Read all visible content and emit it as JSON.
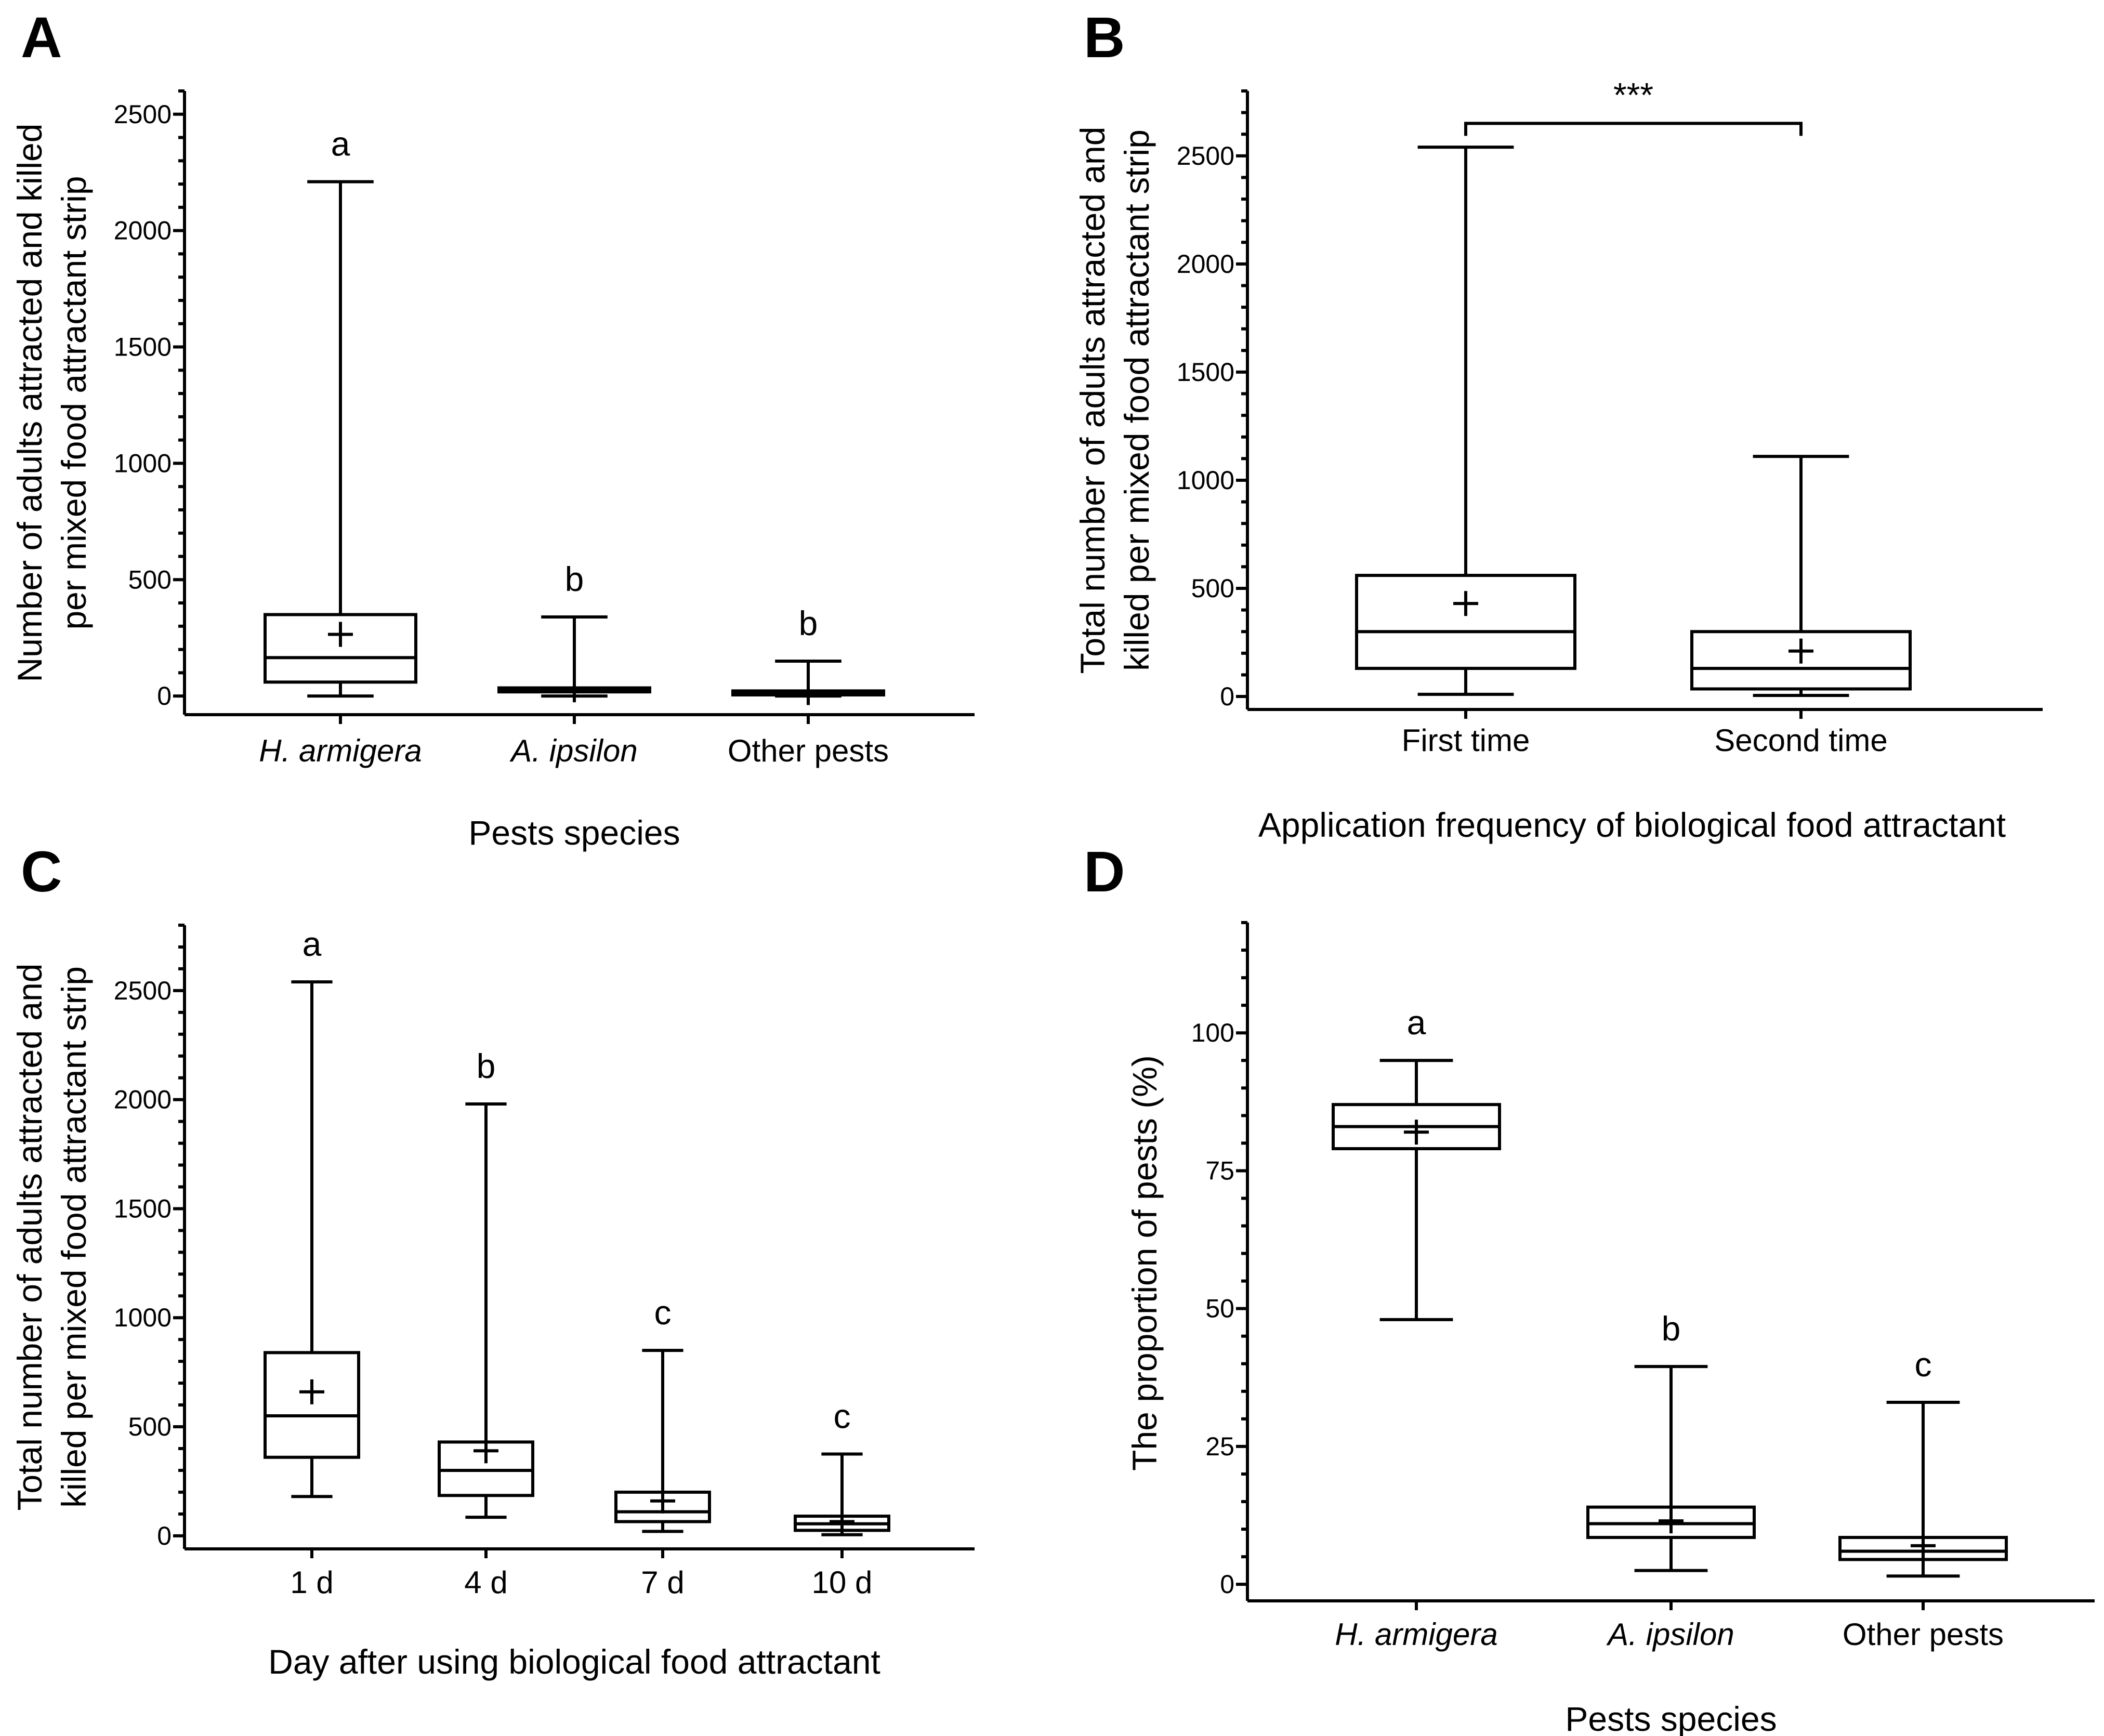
{
  "colors": {
    "ink": "#000000",
    "background": "#ffffff"
  },
  "chart_data": [
    {
      "panel": "A",
      "type": "box",
      "xlabel": "Pests species",
      "ylabel_lines": [
        "Number of adults attracted and killed",
        "per mixed food attractant strip"
      ],
      "ylim": [
        -80,
        2600
      ],
      "yticks": [
        0,
        500,
        1000,
        1500,
        2000,
        2500
      ],
      "yticks_labels": [
        "0",
        "500",
        "1000",
        "1500",
        "2000",
        "2500"
      ],
      "minor_step": 100,
      "categories": [
        "H. armigera",
        "A. ipsilon",
        "Other pests"
      ],
      "italic_categories": [
        true,
        true,
        false
      ],
      "boxes": [
        {
          "min": 0,
          "q1": 60,
          "median": 165,
          "q3": 350,
          "max": 2210,
          "mean": 265,
          "letter": "a"
        },
        {
          "min": 0,
          "q1": 18,
          "median": 25,
          "q3": 35,
          "max": 340,
          "mean": 27,
          "letter": "b"
        },
        {
          "min": 0,
          "q1": 5,
          "median": 12,
          "q3": 22,
          "max": 150,
          "mean": 15,
          "letter": "b"
        }
      ]
    },
    {
      "panel": "B",
      "type": "box",
      "xlabel": "Application frequency of biological food attractant",
      "ylabel_lines": [
        "Total number of adults attracted and",
        "killed per mixed food attractant strip"
      ],
      "ylim": [
        -60,
        2800
      ],
      "yticks": [
        0,
        500,
        1000,
        1500,
        2000,
        2500
      ],
      "yticks_labels": [
        "0",
        "500",
        "1000",
        "1500",
        "2000",
        "2500"
      ],
      "minor_step": 100,
      "categories": [
        "First time",
        "Second time"
      ],
      "italic_categories": [
        false,
        false
      ],
      "significance": {
        "between": [
          0,
          1
        ],
        "label": "***",
        "level": 2650
      },
      "boxes": [
        {
          "min": 10,
          "q1": 130,
          "median": 300,
          "q3": 560,
          "max": 2540,
          "mean": 430,
          "letter": ""
        },
        {
          "min": 5,
          "q1": 35,
          "median": 130,
          "q3": 300,
          "max": 1110,
          "mean": 210,
          "letter": ""
        }
      ]
    },
    {
      "panel": "C",
      "type": "box",
      "xlabel": "Day after using biological food attractant",
      "ylabel_lines": [
        "Total number of adults attracted and",
        "killed per mixed food attractant strip"
      ],
      "ylim": [
        -60,
        2800
      ],
      "yticks": [
        0,
        500,
        1000,
        1500,
        2000,
        2500
      ],
      "yticks_labels": [
        "0",
        "500",
        "1000",
        "1500",
        "2000",
        "2500"
      ],
      "minor_step": 100,
      "categories": [
        "1 d",
        "4 d",
        "7 d",
        "10 d"
      ],
      "italic_categories": [
        false,
        false,
        false,
        false
      ],
      "boxes": [
        {
          "min": 180,
          "q1": 360,
          "median": 550,
          "q3": 840,
          "max": 2540,
          "mean": 660,
          "letter": "a"
        },
        {
          "min": 85,
          "q1": 185,
          "median": 300,
          "q3": 430,
          "max": 1980,
          "mean": 390,
          "letter": "b"
        },
        {
          "min": 20,
          "q1": 65,
          "median": 110,
          "q3": 200,
          "max": 850,
          "mean": 160,
          "letter": "c"
        },
        {
          "min": 5,
          "q1": 25,
          "median": 55,
          "q3": 90,
          "max": 375,
          "mean": 65,
          "letter": "c"
        }
      ]
    },
    {
      "panel": "D",
      "type": "box",
      "xlabel": "Pests species",
      "ylabel_lines": [
        "The  proportion of pests (%)"
      ],
      "ylim": [
        -3,
        120
      ],
      "yticks": [
        0,
        25,
        50,
        75,
        100
      ],
      "yticks_labels": [
        "0",
        "25",
        "50",
        "75",
        "100"
      ],
      "minor_step": 5,
      "categories": [
        "H. armigera",
        "A. ipsilon",
        "Other pests"
      ],
      "italic_categories": [
        true,
        true,
        false
      ],
      "boxes": [
        {
          "min": 48,
          "q1": 79,
          "median": 83,
          "q3": 87,
          "max": 95,
          "mean": 82,
          "letter": "a"
        },
        {
          "min": 2.5,
          "q1": 8.5,
          "median": 11,
          "q3": 14,
          "max": 39.5,
          "mean": 11.5,
          "letter": "b"
        },
        {
          "min": 1.5,
          "q1": 4.5,
          "median": 6,
          "q3": 8.5,
          "max": 33,
          "mean": 7,
          "letter": "c"
        }
      ]
    }
  ]
}
